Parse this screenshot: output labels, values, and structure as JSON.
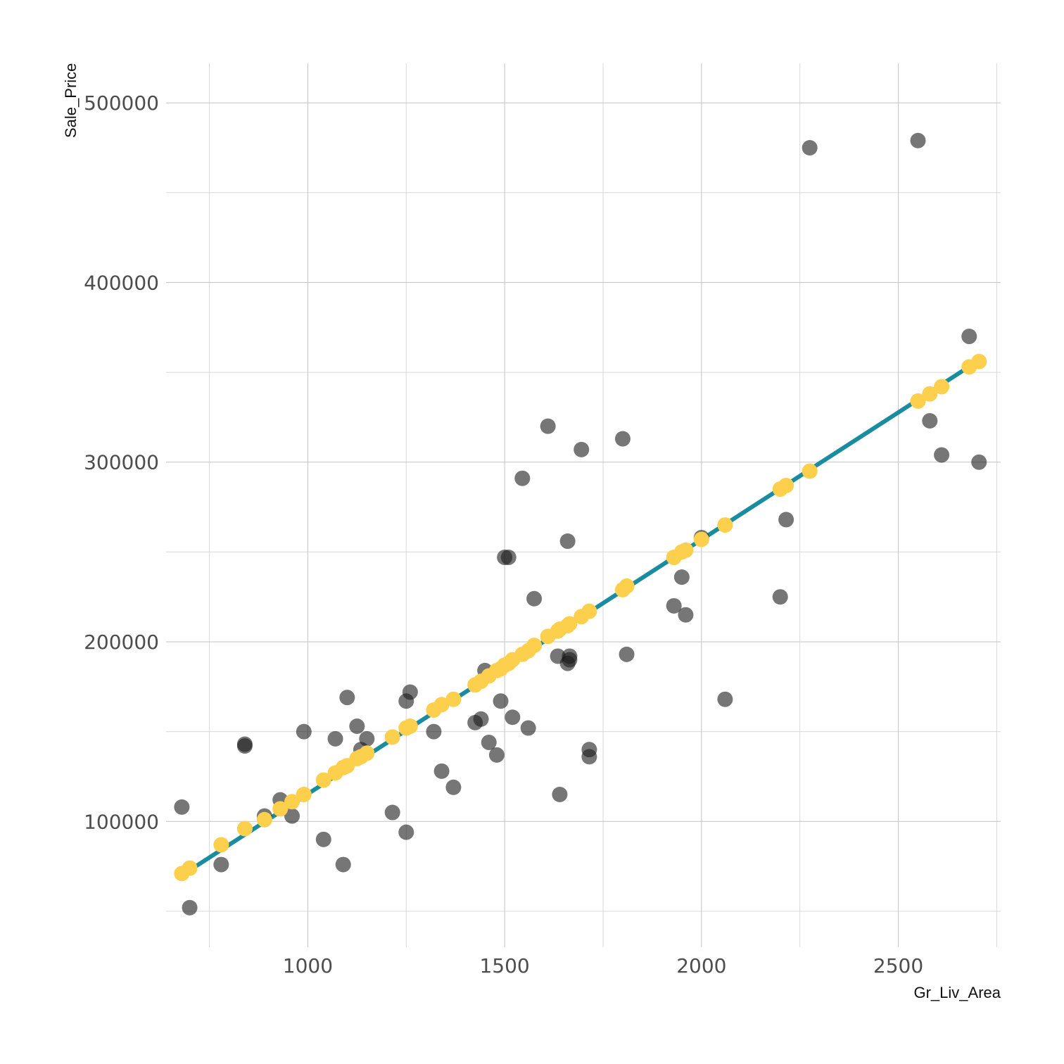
{
  "chart_data": {
    "type": "scatter",
    "xlabel": "Gr_Liv_Area",
    "ylabel": "Sale_Price",
    "xlim": [
      640,
      2760
    ],
    "ylim": [
      30000,
      522000
    ],
    "x_ticks": [
      1000,
      1500,
      2000,
      2500
    ],
    "x_tick_labels": [
      "1000",
      "1500",
      "2000",
      "2500"
    ],
    "y_ticks": [
      100000,
      200000,
      300000,
      400000,
      500000
    ],
    "y_tick_labels": [
      "100000",
      "200000",
      "300000",
      "400000",
      "500000"
    ],
    "x_minor": [
      750,
      1250,
      1750,
      2250,
      2750
    ],
    "y_minor": [
      50000,
      150000,
      250000,
      350000,
      450000
    ],
    "grid": true,
    "legend": "none",
    "colors": {
      "observed": "#1a1a1a",
      "predicted": "#FCCF4C",
      "fit_line": "#1A8CA0",
      "grid": "#c8c8c8"
    },
    "fit_line": {
      "x": [
        680,
        2700
      ],
      "y": [
        70000,
        356000
      ]
    },
    "series": [
      {
        "kind": "observed",
        "x": [
          680,
          700,
          780,
          840,
          840,
          890,
          930,
          960,
          990,
          1040,
          1070,
          1090,
          1100,
          1125,
          1135,
          1150,
          1215,
          1250,
          1250,
          1260,
          1320,
          1340,
          1370,
          1425,
          1440,
          1450,
          1460,
          1480,
          1490,
          1500,
          1510,
          1520,
          1545,
          1560,
          1575,
          1610,
          1635,
          1640,
          1660,
          1660,
          1665,
          1665,
          1695,
          1715,
          1715,
          1800,
          1810,
          1930,
          1950,
          1960,
          2000,
          2060,
          2200,
          2215,
          2275,
          2550,
          2580,
          2610,
          2680,
          2705
        ],
        "y": [
          108000,
          52000,
          76000,
          143000,
          142000,
          103000,
          112000,
          103000,
          150000,
          90000,
          146000,
          76000,
          169000,
          153000,
          140000,
          146000,
          105000,
          167000,
          94000,
          172000,
          150000,
          128000,
          119000,
          155000,
          157000,
          184000,
          144000,
          137000,
          167000,
          247000,
          247000,
          158000,
          291000,
          152000,
          224000,
          320000,
          192000,
          115000,
          256000,
          188000,
          192000,
          190000,
          307000,
          140000,
          136000,
          313000,
          193000,
          220000,
          236000,
          215000,
          258000,
          168000,
          225000,
          268000,
          475000,
          479000,
          323000,
          304000,
          370000,
          300000
        ]
      },
      {
        "kind": "predicted",
        "x": [
          680,
          700,
          780,
          840,
          890,
          930,
          960,
          990,
          1040,
          1070,
          1090,
          1100,
          1125,
          1135,
          1150,
          1215,
          1250,
          1260,
          1320,
          1340,
          1370,
          1425,
          1440,
          1460,
          1480,
          1490,
          1500,
          1510,
          1520,
          1545,
          1560,
          1575,
          1610,
          1635,
          1640,
          1660,
          1665,
          1695,
          1715,
          1800,
          1810,
          1930,
          1950,
          1960,
          2000,
          2060,
          2200,
          2215,
          2275,
          2550,
          2580,
          2610,
          2680,
          2705
        ],
        "y": [
          71000,
          74000,
          87000,
          96000,
          101000,
          107000,
          111000,
          115000,
          123000,
          127000,
          130000,
          131000,
          135000,
          136000,
          138000,
          147000,
          152000,
          153000,
          162000,
          165000,
          168000,
          176000,
          178000,
          181000,
          184000,
          185000,
          187000,
          188000,
          190000,
          193000,
          195000,
          198000,
          203000,
          206000,
          207000,
          209000,
          210000,
          214000,
          217000,
          229000,
          231000,
          247000,
          250000,
          251000,
          257000,
          265000,
          285000,
          287000,
          295000,
          334000,
          338000,
          342000,
          353000,
          356000
        ]
      }
    ]
  }
}
